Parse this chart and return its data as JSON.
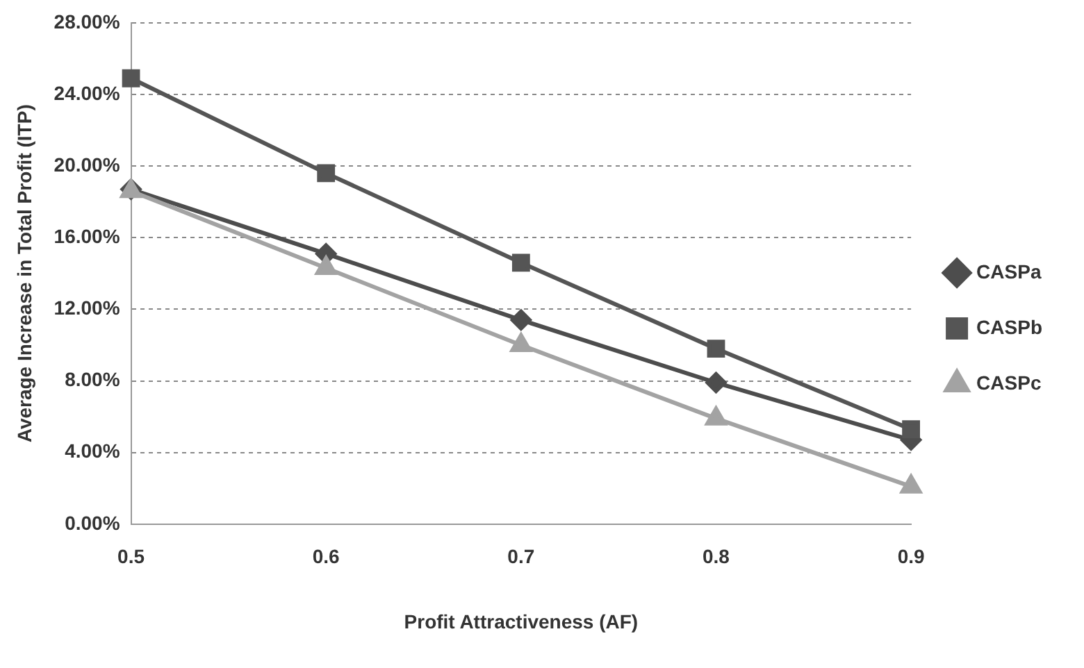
{
  "chart_data": {
    "type": "line",
    "xlabel": "Profit Attractiveness (AF)",
    "ylabel": "Average Increase in Total Profit (ITP)",
    "categories": [
      "0.5",
      "0.6",
      "0.7",
      "0.8",
      "0.9"
    ],
    "series": [
      {
        "name": "CASPa",
        "color": "#4d4d4d",
        "marker": "diamond",
        "values": [
          18.7,
          15.1,
          11.4,
          7.9,
          4.7
        ]
      },
      {
        "name": "CASPb",
        "color": "#555555",
        "marker": "square",
        "values": [
          24.9,
          19.6,
          14.6,
          9.8,
          5.3
        ]
      },
      {
        "name": "CASPc",
        "color": "#a3a3a3",
        "marker": "triangle",
        "values": [
          18.6,
          14.3,
          10.0,
          5.9,
          2.1
        ]
      }
    ],
    "ylim": [
      0,
      28
    ],
    "yticks": [
      {
        "value": 0,
        "label": "0.00%"
      },
      {
        "value": 4,
        "label": "4.00%"
      },
      {
        "value": 8,
        "label": "8.00%"
      },
      {
        "value": 12,
        "label": "12.00%"
      },
      {
        "value": 16,
        "label": "16.00%"
      },
      {
        "value": 20,
        "label": "20.00%"
      },
      {
        "value": 24,
        "label": "24.00%"
      },
      {
        "value": 28,
        "label": "28.00%"
      }
    ],
    "grid": "y",
    "legend": "right",
    "line_style": "solid"
  }
}
